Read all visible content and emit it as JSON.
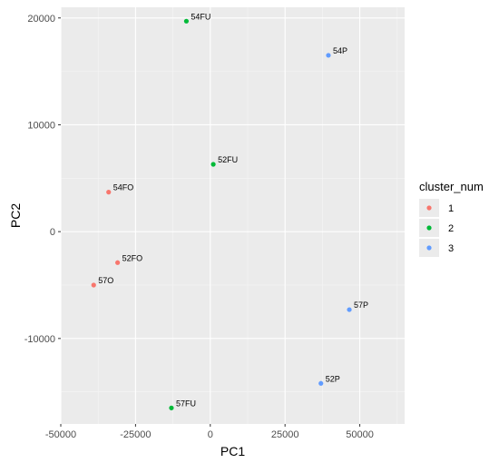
{
  "chart_data": {
    "type": "scatter",
    "title": "",
    "xlabel": "PC1",
    "ylabel": "PC2",
    "xlim": [
      -50000,
      65000
    ],
    "ylim": [
      -18000,
      21000
    ],
    "x_ticks": [
      -50000,
      -25000,
      0,
      25000,
      50000
    ],
    "x_tick_labels": [
      "-50000",
      "-25000",
      "0",
      "25000",
      "50000"
    ],
    "y_ticks": [
      -10000,
      0,
      10000,
      20000
    ],
    "y_tick_labels": [
      "-10000",
      "0",
      "10000",
      "20000"
    ],
    "grid": true,
    "legend": {
      "title": "cluster_num",
      "placement": "right",
      "entries": [
        {
          "label": "1",
          "color": "#F8766D"
        },
        {
          "label": "2",
          "color": "#00BA38"
        },
        {
          "label": "3",
          "color": "#619CFF"
        }
      ]
    },
    "points": [
      {
        "label": "54FU",
        "x": -8000,
        "y": 19700,
        "cluster": "2"
      },
      {
        "label": "54P",
        "x": 39500,
        "y": 16500,
        "cluster": "3"
      },
      {
        "label": "52FU",
        "x": 1000,
        "y": 6300,
        "cluster": "2"
      },
      {
        "label": "54FO",
        "x": -34000,
        "y": 3700,
        "cluster": "1"
      },
      {
        "label": "52FO",
        "x": -31000,
        "y": -2900,
        "cluster": "1"
      },
      {
        "label": "57O",
        "x": -39000,
        "y": -5000,
        "cluster": "1"
      },
      {
        "label": "57P",
        "x": 46500,
        "y": -7300,
        "cluster": "3"
      },
      {
        "label": "52P",
        "x": 37000,
        "y": -14200,
        "cluster": "3"
      },
      {
        "label": "57FU",
        "x": -13000,
        "y": -16500,
        "cluster": "2"
      }
    ]
  }
}
